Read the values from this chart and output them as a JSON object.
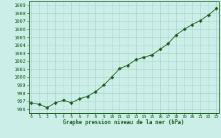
{
  "x": [
    0,
    1,
    2,
    3,
    4,
    5,
    6,
    7,
    8,
    9,
    10,
    11,
    12,
    13,
    14,
    15,
    16,
    17,
    18,
    19,
    20,
    21,
    22,
    23
  ],
  "y": [
    996.8,
    996.6,
    996.2,
    996.8,
    997.1,
    996.8,
    997.3,
    997.6,
    998.2,
    999.0,
    1000.0,
    1001.1,
    1001.5,
    1002.2,
    1002.5,
    1002.8,
    1003.5,
    1004.2,
    1005.3,
    1006.0,
    1006.6,
    1007.1,
    1007.8,
    1008.6
  ],
  "line_color": "#1a5c1a",
  "marker": "D",
  "marker_size": 2.5,
  "bg_color": "#cceee8",
  "grid_color": "#aad4c8",
  "title": "Graphe pression niveau de la mer (hPa)",
  "ylim": [
    995.5,
    1009.5
  ],
  "ytick_min": 996,
  "ytick_max": 1009,
  "ytick_step": 1,
  "xlim": [
    -0.3,
    23.3
  ]
}
